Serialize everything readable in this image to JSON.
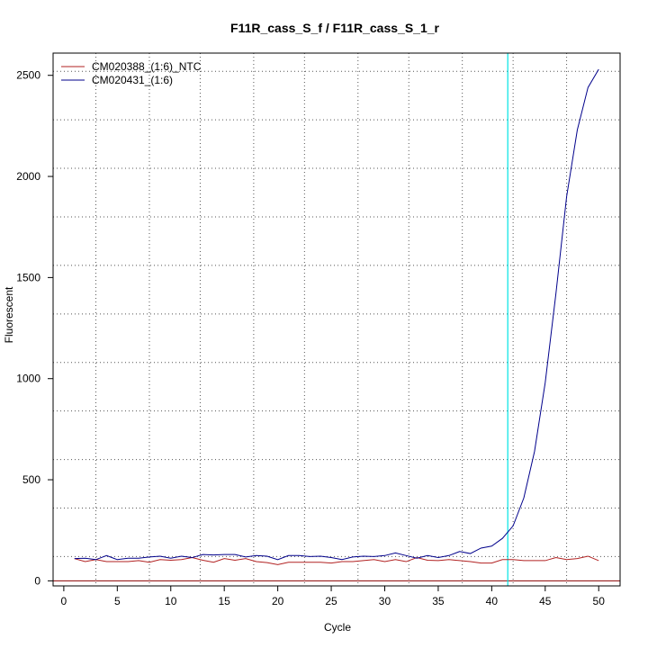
{
  "chart_data": {
    "type": "line",
    "title": "F11R_cass_S_f / F11R_cass_S_1_r",
    "xlabel": "Cycle",
    "ylabel": "Fluorescent",
    "xlim": [
      -1,
      52
    ],
    "ylim": [
      -25,
      2610
    ],
    "x_ticks": [
      0,
      5,
      10,
      15,
      20,
      25,
      30,
      35,
      40,
      45,
      50
    ],
    "y_ticks": [
      0,
      500,
      1000,
      1500,
      2000,
      2500
    ],
    "grid": true,
    "grid_x": [
      3,
      8,
      12.75,
      17.75,
      22.5,
      27.5,
      32.25,
      37.25,
      42,
      47
    ],
    "grid_y": [
      120,
      360,
      600,
      840,
      1080,
      1320,
      1560,
      1800,
      2040,
      2280,
      2520
    ],
    "legend_position": "top-left",
    "threshold_cycle": 41.5,
    "threshold_color": "#00e5e5",
    "baseline_color": "#8b0000",
    "x": [
      1,
      2,
      3,
      4,
      5,
      6,
      7,
      8,
      9,
      10,
      11,
      12,
      13,
      14,
      15,
      16,
      17,
      18,
      19,
      20,
      21,
      22,
      23,
      24,
      25,
      26,
      27,
      28,
      29,
      30,
      31,
      32,
      33,
      34,
      35,
      36,
      37,
      38,
      39,
      40,
      41,
      42,
      43,
      44,
      45,
      46,
      47,
      48,
      49,
      50
    ],
    "series": [
      {
        "name": "CM020388_(1:6)_NTC",
        "color": "#b22222",
        "values": [
          110,
          95,
          105,
          95,
          95,
          95,
          100,
          92,
          105,
          102,
          105,
          115,
          102,
          92,
          110,
          102,
          110,
          95,
          90,
          80,
          92,
          92,
          92,
          92,
          88,
          95,
          95,
          100,
          105,
          95,
          105,
          95,
          115,
          102,
          100,
          105,
          100,
          95,
          88,
          88,
          105,
          105,
          100,
          100,
          100,
          115,
          105,
          110,
          122,
          100
        ]
      },
      {
        "name": "CM020431_(1:6)",
        "color": "#00008b",
        "values": [
          110,
          112,
          105,
          125,
          105,
          112,
          112,
          118,
          122,
          112,
          122,
          115,
          130,
          128,
          130,
          130,
          118,
          125,
          122,
          105,
          125,
          125,
          120,
          122,
          115,
          105,
          118,
          122,
          120,
          125,
          138,
          125,
          112,
          125,
          115,
          125,
          145,
          135,
          162,
          172,
          210,
          272,
          410,
          640,
          980,
          1420,
          1900,
          2230,
          2440,
          2530
        ]
      }
    ]
  }
}
